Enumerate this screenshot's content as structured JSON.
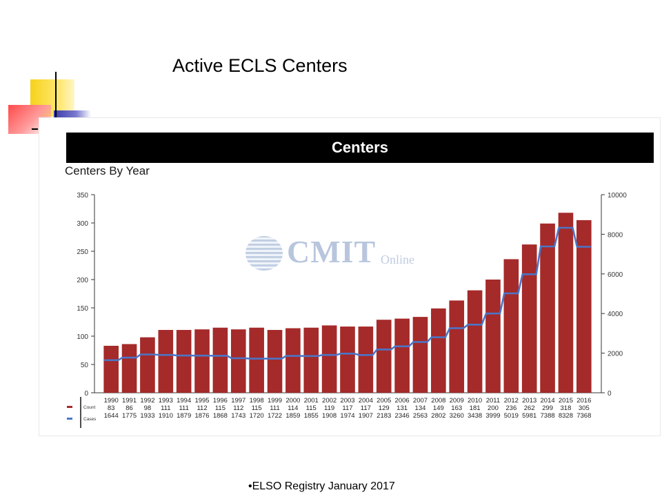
{
  "slide": {
    "title": "Active ECLS Centers",
    "footer": "•ELSO Registry January  2017"
  },
  "watermark": {
    "text": "CMIT",
    "small": "Online"
  },
  "chart_data": {
    "type": "bar",
    "header": "Centers",
    "title": "Centers By Year",
    "legend": [
      {
        "name": "Count",
        "color": "#a52a2a"
      },
      {
        "name": "Cases",
        "color": "#4a76c8"
      }
    ],
    "legend_position": "bottom-left",
    "categories": [
      "1990",
      "1991",
      "1992",
      "1993",
      "1994",
      "1995",
      "1996",
      "1997",
      "1998",
      "1999",
      "2000",
      "2001",
      "2002",
      "2003",
      "2004",
      "2005",
      "2006",
      "2007",
      "2008",
      "2009",
      "2010",
      "2011",
      "2012",
      "2013",
      "2014",
      "2015",
      "2016"
    ],
    "series": [
      {
        "name": "Count",
        "type": "bar",
        "axis": "left",
        "color": "#a52a2a",
        "values": [
          83,
          86,
          98,
          111,
          111,
          112,
          115,
          112,
          115,
          111,
          114,
          115,
          119,
          117,
          117,
          129,
          131,
          134,
          149,
          163,
          181,
          200,
          236,
          262,
          299,
          318,
          305
        ]
      },
      {
        "name": "Cases",
        "type": "step-line",
        "axis": "right",
        "color": "#4a76c8",
        "values": [
          1644,
          1775,
          1933,
          1910,
          1879,
          1876,
          1868,
          1743,
          1720,
          1722,
          1859,
          1855,
          1908,
          1974,
          1907,
          2183,
          2346,
          2563,
          2802,
          3260,
          3438,
          3999,
          5019,
          5981,
          7388,
          8328,
          7368
        ]
      }
    ],
    "ylim": [
      0,
      350
    ],
    "yticks": [
      0,
      50,
      100,
      150,
      200,
      250,
      300,
      350
    ],
    "y2lim": [
      0,
      10000
    ],
    "y2ticks": [
      0,
      2000,
      4000,
      6000,
      8000,
      10000
    ],
    "grid": false
  }
}
